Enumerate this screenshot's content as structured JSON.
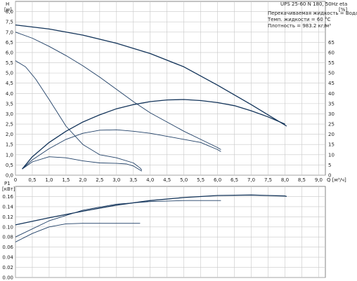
{
  "chart_data": [
    {
      "type": "line",
      "model": "UPS 25-60 N 180, 50Hz",
      "info_lines": [
        "Перекачиваемая жидкость = Вода",
        "Темп. жидкости = 60 °C",
        "Плотность = 983.2 кг/м³"
      ],
      "ylabel_left": [
        "H",
        "[м]"
      ],
      "ylabel_right": [
        "eta",
        "[%]"
      ],
      "xlabel": "Q [м³/ч]",
      "xlim": [
        0,
        9.2
      ],
      "ylim_left": [
        0,
        8.5
      ],
      "ylim_right": [
        0,
        85
      ],
      "x_ticks": [
        "0",
        "0.5",
        "1.0",
        "1.5",
        "2.0",
        "2.5",
        "3.0",
        "3.5",
        "4.0",
        "4.5",
        "5.0",
        "5.5",
        "6.0",
        "6.5",
        "7.0",
        "7.5",
        "8.0",
        "8.5",
        "9.0"
      ],
      "y_ticks_left": [
        "0.0",
        "0.5",
        "1.0",
        "1.5",
        "2.0",
        "2.5",
        "3.0",
        "3.5",
        "4.0",
        "4.5",
        "5.0",
        "5.5",
        "6.0",
        "6.5",
        "7.0",
        "7.5",
        "8.0"
      ],
      "y_ticks_right": [
        "0",
        "5",
        "10",
        "15",
        "20",
        "25",
        "30",
        "35",
        "40",
        "45",
        "50",
        "55",
        "60",
        "65"
      ],
      "grid": true,
      "series": [
        {
          "axis": "left",
          "points": [
            [
              0,
              7.35
            ],
            [
              1,
              7.15
            ],
            [
              2,
              6.85
            ],
            [
              3,
              6.45
            ],
            [
              4,
              5.95
            ],
            [
              5,
              5.3
            ],
            [
              6,
              4.4
            ],
            [
              7,
              3.45
            ],
            [
              8,
              2.45
            ],
            [
              8.05,
              2.4
            ]
          ]
        },
        {
          "axis": "left",
          "points": [
            [
              0,
              7.0
            ],
            [
              0.5,
              6.7
            ],
            [
              1,
              6.3
            ],
            [
              1.5,
              5.85
            ],
            [
              2,
              5.35
            ],
            [
              2.5,
              4.8
            ],
            [
              3,
              4.2
            ],
            [
              3.5,
              3.6
            ],
            [
              4,
              3.05
            ],
            [
              4.5,
              2.6
            ],
            [
              5,
              2.15
            ],
            [
              5.5,
              1.75
            ],
            [
              6,
              1.35
            ],
            [
              6.1,
              1.25
            ]
          ]
        },
        {
          "axis": "left",
          "points": [
            [
              0,
              5.6
            ],
            [
              0.3,
              5.3
            ],
            [
              0.6,
              4.7
            ],
            [
              1,
              3.7
            ],
            [
              1.5,
              2.4
            ],
            [
              2,
              1.5
            ],
            [
              2.5,
              1.0
            ],
            [
              3,
              0.85
            ],
            [
              3.5,
              0.6
            ],
            [
              3.7,
              0.35
            ],
            [
              3.75,
              0.25
            ]
          ]
        },
        {
          "axis": "right",
          "points": [
            [
              0.2,
              3
            ],
            [
              0.5,
              9
            ],
            [
              1,
              16
            ],
            [
              1.5,
              21.5
            ],
            [
              2,
              26
            ],
            [
              2.5,
              29.5
            ],
            [
              3,
              32.5
            ],
            [
              3.5,
              34.5
            ],
            [
              4,
              36
            ],
            [
              4.5,
              36.8
            ],
            [
              5,
              37
            ],
            [
              5.5,
              36.5
            ],
            [
              6,
              35.5
            ],
            [
              6.5,
              34
            ],
            [
              7,
              31.5
            ],
            [
              7.5,
              28.5
            ],
            [
              8,
              25
            ]
          ]
        },
        {
          "axis": "right",
          "points": [
            [
              0.2,
              3
            ],
            [
              0.5,
              7.5
            ],
            [
              1,
              13
            ],
            [
              1.5,
              17.5
            ],
            [
              2,
              20.5
            ],
            [
              2.5,
              22
            ],
            [
              3,
              22.2
            ],
            [
              3.5,
              21.5
            ],
            [
              4,
              20.5
            ],
            [
              4.5,
              19
            ],
            [
              5,
              17.5
            ],
            [
              5.5,
              16
            ],
            [
              6,
              12.5
            ],
            [
              6.1,
              11.5
            ]
          ]
        },
        {
          "axis": "right",
          "points": [
            [
              0.2,
              3
            ],
            [
              0.5,
              6.5
            ],
            [
              1,
              9
            ],
            [
              1.5,
              8.5
            ],
            [
              2,
              7
            ],
            [
              2.5,
              6
            ],
            [
              3,
              5.8
            ],
            [
              3.3,
              5.5
            ],
            [
              3.5,
              4.5
            ],
            [
              3.7,
              2.5
            ],
            [
              3.75,
              2
            ]
          ]
        }
      ]
    },
    {
      "type": "line",
      "ylabel": [
        "P1",
        "[кВт]"
      ],
      "xlim": [
        0,
        9.2
      ],
      "ylim": [
        0,
        0.18
      ],
      "y_ticks": [
        "0.00",
        "0.02",
        "0.04",
        "0.06",
        "0.08",
        "0.10",
        "0.12",
        "0.14",
        "0.16"
      ],
      "grid": true,
      "series": [
        {
          "points": [
            [
              0,
              0.104
            ],
            [
              1,
              0.118
            ],
            [
              2,
              0.131
            ],
            [
              3,
              0.143
            ],
            [
              4,
              0.152
            ],
            [
              5,
              0.158
            ],
            [
              6,
              0.162
            ],
            [
              7,
              0.163
            ],
            [
              8,
              0.161
            ],
            [
              8.05,
              0.16
            ]
          ]
        },
        {
          "points": [
            [
              0,
              0.08
            ],
            [
              1,
              0.112
            ],
            [
              2,
              0.133
            ],
            [
              3,
              0.145
            ],
            [
              4,
              0.15
            ],
            [
              5,
              0.152
            ],
            [
              6,
              0.152
            ],
            [
              6.1,
              0.152
            ]
          ]
        },
        {
          "points": [
            [
              0,
              0.07
            ],
            [
              0.5,
              0.087
            ],
            [
              1,
              0.1
            ],
            [
              1.5,
              0.106
            ],
            [
              2,
              0.107
            ],
            [
              3,
              0.107
            ],
            [
              3.7,
              0.107
            ]
          ]
        }
      ]
    }
  ]
}
